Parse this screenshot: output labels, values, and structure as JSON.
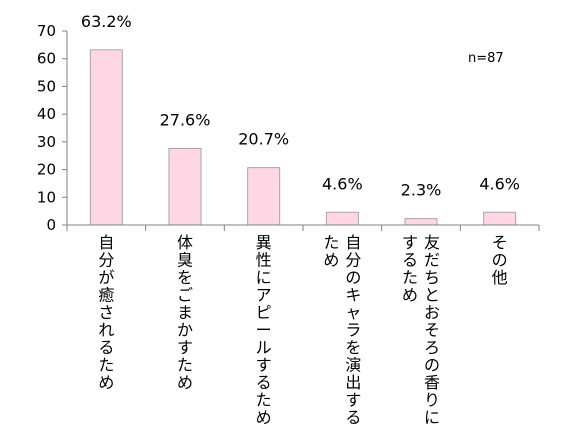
{
  "chart_data": {
    "type": "bar",
    "title": "",
    "xlabel": "",
    "ylabel": "",
    "ylim": [
      0,
      70
    ],
    "yticks": [
      0,
      10,
      20,
      30,
      40,
      50,
      60,
      70
    ],
    "grid": false,
    "categories": [
      [
        "自分が癒されるため"
      ],
      [
        "体臭をごまかすため"
      ],
      [
        "異性にアピールするため"
      ],
      [
        "自分のキャラを演出する",
        "ため"
      ],
      [
        "友だちとおそろの香りに",
        "するため"
      ],
      [
        "その他"
      ]
    ],
    "values": [
      63.2,
      27.6,
      20.7,
      4.6,
      2.3,
      4.6
    ],
    "data_labels": [
      "63.2%",
      "27.6%",
      "20.7%",
      "4.6%",
      "2.3%",
      "4.6%"
    ],
    "annotation": "n=87",
    "colors": {
      "bar_fill": "#ffd6e4",
      "bar_stroke": "#a6a6a6",
      "axis": "#808080"
    }
  }
}
